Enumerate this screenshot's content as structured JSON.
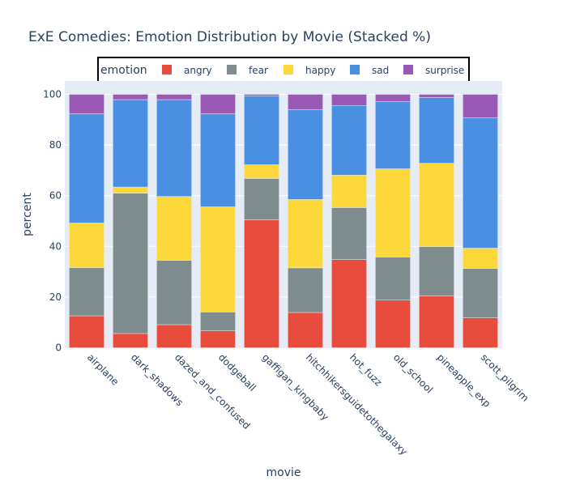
{
  "chart_data": {
    "type": "bar",
    "barmode": "stack",
    "title": "ExE Comedies: Emotion Distribution by Movie (Stacked %)",
    "xlabel": "movie",
    "ylabel": "percent",
    "ylim": [
      0,
      100
    ],
    "yticks": [
      0,
      20,
      40,
      60,
      80,
      100
    ],
    "ytick_labels": [
      "0",
      "20",
      "40",
      "60",
      "80",
      "100"
    ],
    "grid": true,
    "legend": {
      "title": "emotion",
      "placement": "top-center",
      "orientation": "horizontal"
    },
    "categories": [
      "airplane",
      "dark_shadows",
      "dazed_and_confused",
      "dodgeball",
      "gaffigan_kingbaby",
      "hitchhikersguidetothegalaxy",
      "hot_fuzz",
      "old_school",
      "pineapple_exp",
      "scott_pilgrim"
    ],
    "series": [
      {
        "name": "angry",
        "color": "#e74c3c",
        "values": [
          12.6,
          5.6,
          9.1,
          6.7,
          50.5,
          13.9,
          34.8,
          18.8,
          20.4,
          11.8
        ]
      },
      {
        "name": "fear",
        "color": "#7f8c8d",
        "values": [
          19.0,
          55.4,
          25.4,
          7.4,
          16.3,
          17.6,
          20.5,
          17.0,
          19.5,
          19.5
        ]
      },
      {
        "name": "happy",
        "color": "#fdd83b",
        "values": [
          17.6,
          2.4,
          25.2,
          41.5,
          5.4,
          27.0,
          12.8,
          34.8,
          32.9,
          8.0
        ]
      },
      {
        "name": "sad",
        "color": "#4a90e2",
        "values": [
          43.1,
          34.5,
          38.2,
          36.7,
          27.2,
          35.4,
          27.5,
          26.5,
          25.9,
          51.4
        ]
      },
      {
        "name": "surprise",
        "color": "#9b59b6",
        "values": [
          7.7,
          2.1,
          2.1,
          7.7,
          0.6,
          6.1,
          4.4,
          2.9,
          1.3,
          9.3
        ]
      }
    ]
  }
}
